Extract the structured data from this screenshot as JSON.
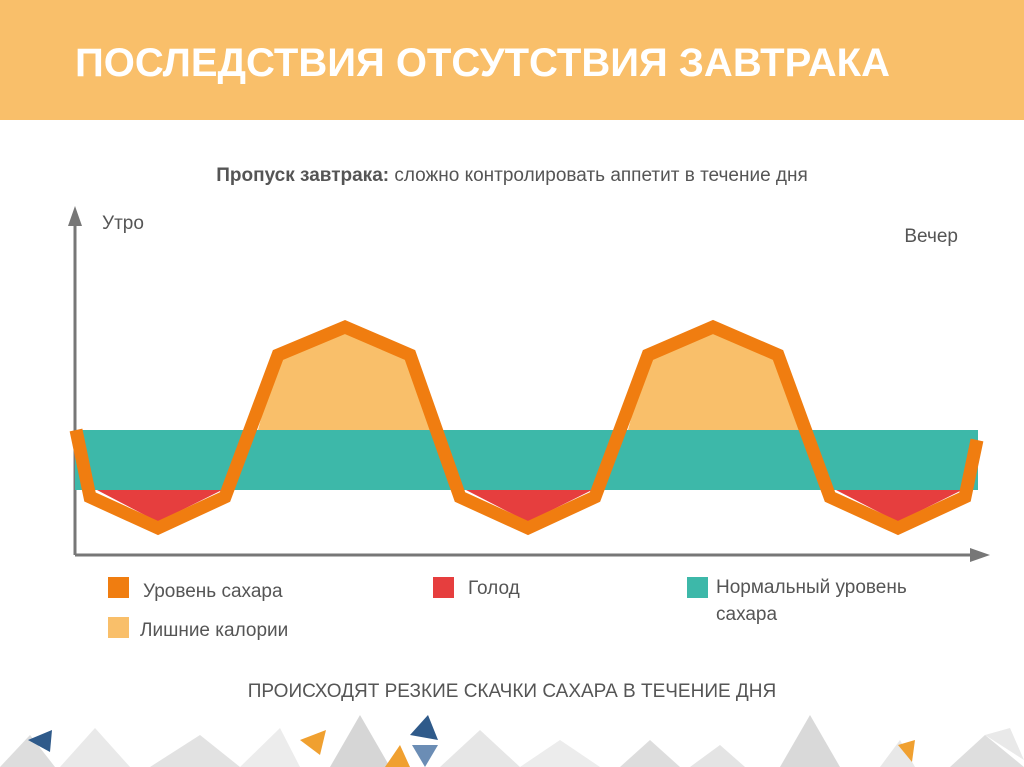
{
  "header": {
    "title": "ПОСЛЕДСТВИЯ ОТСУТСТВИЯ ЗАВТРАКА"
  },
  "subtitle": {
    "bold": "Пропуск завтрака:",
    "rest": " сложно контролировать аппетит в течение дня"
  },
  "axis": {
    "start": "Утро",
    "end": "Вечер"
  },
  "legend": {
    "sugar_level": "Уровень сахара",
    "extra_calories": "Лишние калории",
    "hunger": "Голод",
    "normal_level": [
      "Нормальный уровень",
      "сахара"
    ]
  },
  "footer": "ПРОИСХОДЯТ РЕЗКИЕ СКАЧКИ САХАРА В ТЕЧЕНИЕ ДНЯ"
}
